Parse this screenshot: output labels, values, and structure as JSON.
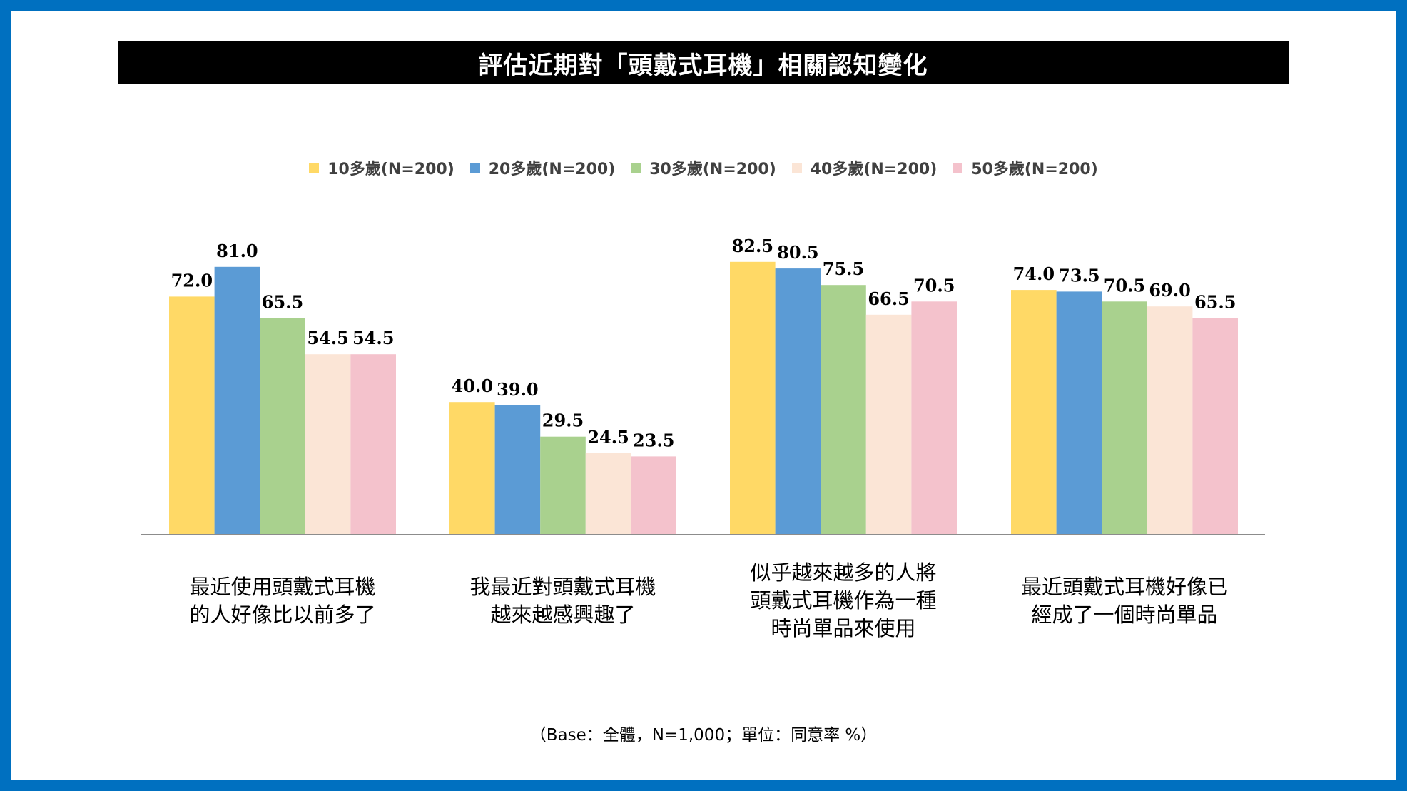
{
  "title": "評估近期對「頭戴式耳機」相關認知變化",
  "footnote": "（Base：全體，N=1,000；單位：同意率 %）",
  "chart_data": {
    "type": "bar",
    "title": "評估近期對「頭戴式耳機」相關認知變化",
    "categories": [
      "最近使用頭戴式耳機的人好像比以前多了",
      "我最近對頭戴式耳機越來越感興趣了",
      "似乎越來越多的人將頭戴式耳機作為一種時尚單品來使用",
      "最近頭戴式耳機好像已經成了一個時尚單品"
    ],
    "category_lines": [
      [
        "最近使用頭戴式耳機",
        "的人好像比以前多了"
      ],
      [
        "我最近對頭戴式耳機",
        "越來越感興趣了"
      ],
      [
        "似乎越來越多的人將",
        "頭戴式耳機作為一種",
        "時尚單品來使用"
      ],
      [
        "最近頭戴式耳機好像已",
        "經成了一個時尚單品"
      ]
    ],
    "series": [
      {
        "name": "10多歲(N=200)",
        "color": "#FFD966",
        "values": [
          72.0,
          40.0,
          82.5,
          74.0
        ]
      },
      {
        "name": "20多歲(N=200)",
        "color": "#5B9BD5",
        "values": [
          81.0,
          39.0,
          80.5,
          73.5
        ]
      },
      {
        "name": "30多歲(N=200)",
        "color": "#A9D18E",
        "values": [
          65.5,
          29.5,
          75.5,
          70.5
        ]
      },
      {
        "name": "40多歲(N=200)",
        "color": "#FBE5D6",
        "values": [
          54.5,
          24.5,
          66.5,
          69.0
        ]
      },
      {
        "name": "50多歲(N=200)",
        "color": "#F4C2CC",
        "values": [
          54.5,
          23.5,
          70.5,
          65.5
        ]
      }
    ],
    "ylim": [
      0,
      100
    ],
    "grid": false,
    "legend": "top",
    "value_format": "one-decimal"
  }
}
